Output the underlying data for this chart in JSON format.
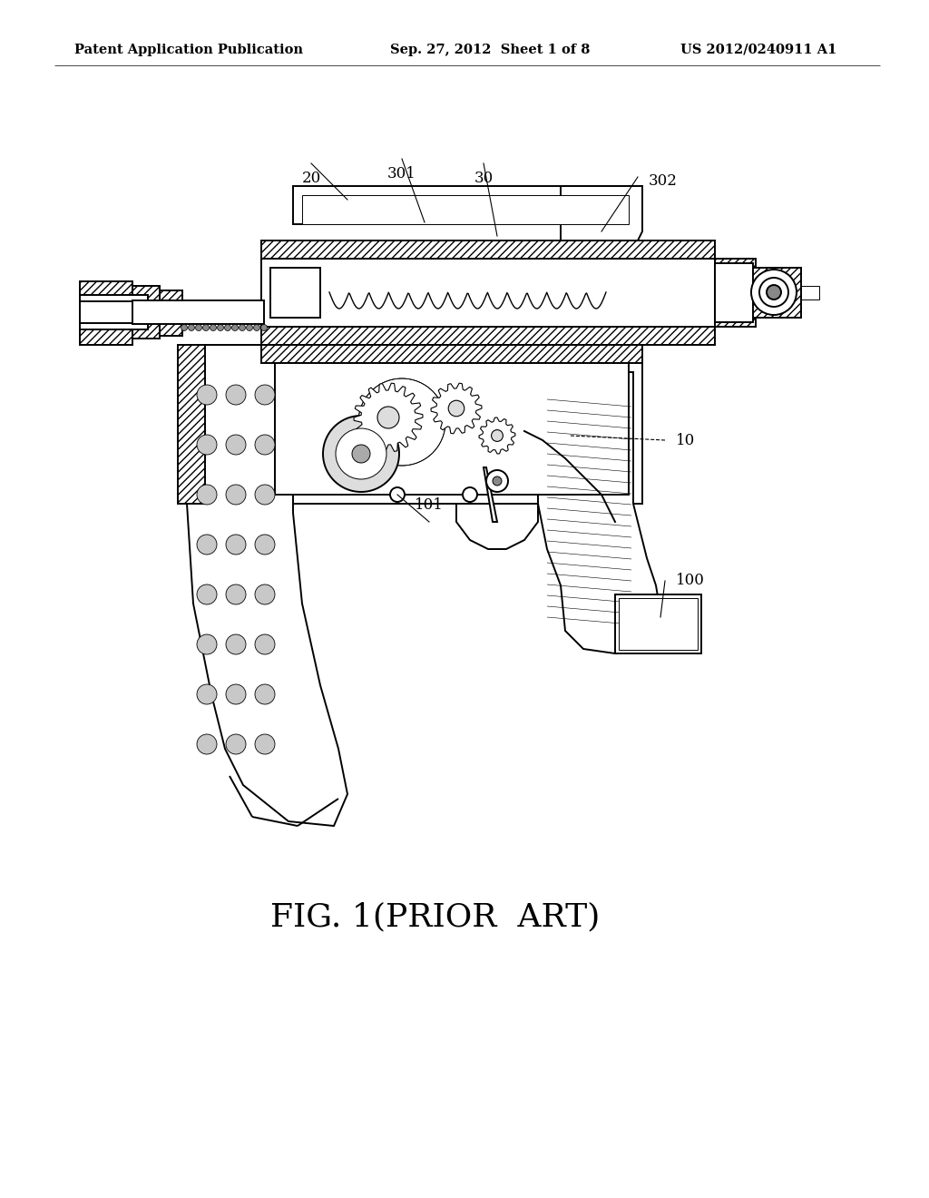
{
  "background_color": "#ffffff",
  "header_left": "Patent Application Publication",
  "header_center": "Sep. 27, 2012  Sheet 1 of 8",
  "header_right": "US 2012/0240911 A1",
  "caption": "FIG. 1(PRIOR  ART)",
  "header_fontsize": 10.5,
  "caption_fontsize": 26,
  "lw_main": 1.4,
  "lw_thin": 0.7,
  "lw_thick": 2.0,
  "lw_hatch": 0.5
}
